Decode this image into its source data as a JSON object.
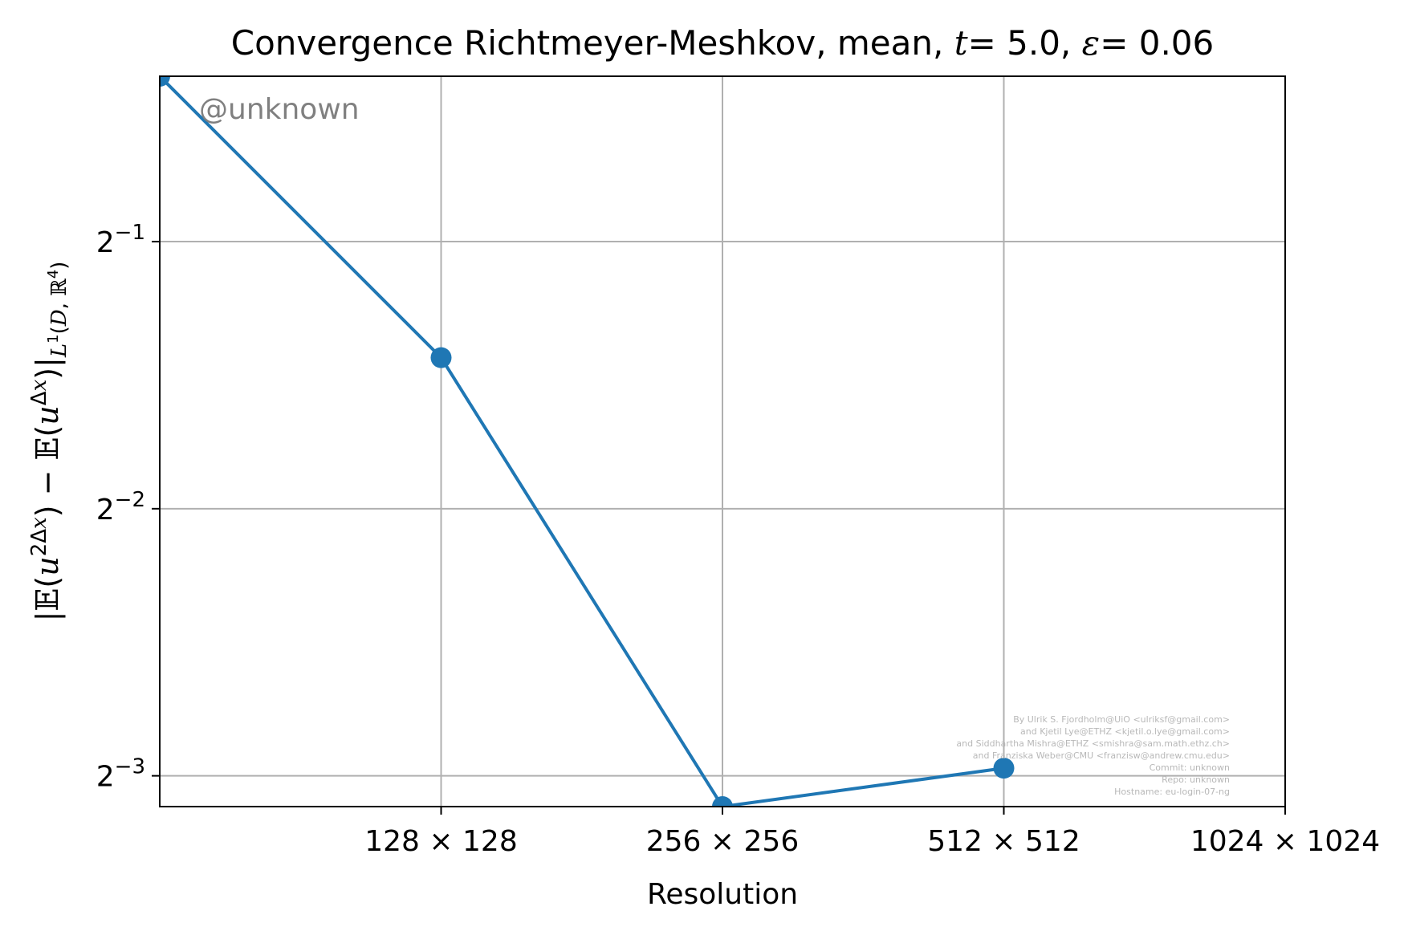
{
  "chart_data": {
    "type": "line",
    "title": {
      "prefix": "Convergence Richtmeyer-Meshkov, mean, ",
      "t_symbol": "t",
      "t_value": "= 5.0, ",
      "eps_symbol": "ε",
      "eps_value": "= 0.06"
    },
    "xlabel": "Resolution",
    "ylabel": "|𝔼(u^{2Δx}) − 𝔼(u^{Δx})|_{L^1(D, ℝ^4)}",
    "x_scale": "log2",
    "y_scale": "log2",
    "xlim": [
      64,
      1024
    ],
    "ylim": [
      0.1154,
      0.768
    ],
    "x_ticks": [
      {
        "value": 128,
        "label": "128 × 128"
      },
      {
        "value": 256,
        "label": "256 × 256"
      },
      {
        "value": 512,
        "label": "512 × 512"
      },
      {
        "value": 1024,
        "label": "1024 × 1024"
      }
    ],
    "y_ticks": [
      {
        "value": 0.5,
        "base": "2",
        "exp": "−1"
      },
      {
        "value": 0.25,
        "base": "2",
        "exp": "−2"
      },
      {
        "value": 0.125,
        "base": "2",
        "exp": "−3"
      }
    ],
    "grid": true,
    "series": [
      {
        "color": "#1f77b4",
        "marker": "circle",
        "x": [
          64,
          128,
          256,
          512
        ],
        "y": [
          0.768,
          0.37,
          0.1154,
          0.1275
        ]
      }
    ],
    "watermark": "@unknown",
    "credits": [
      "By Ulrik S. Fjordholm@UiO <ulriksf@gmail.com>",
      "and Kjetil Lye@ETHZ <kjetil.o.lye@gmail.com>",
      "and Siddhartha Mishra@ETHZ <smishra@sam.math.ethz.ch>",
      "and Franziska Weber@CMU <franzisw@andrew.cmu.edu>",
      "Commit: unknown",
      "Repo: unknown",
      "Hostname: eu-login-07-ng"
    ]
  }
}
